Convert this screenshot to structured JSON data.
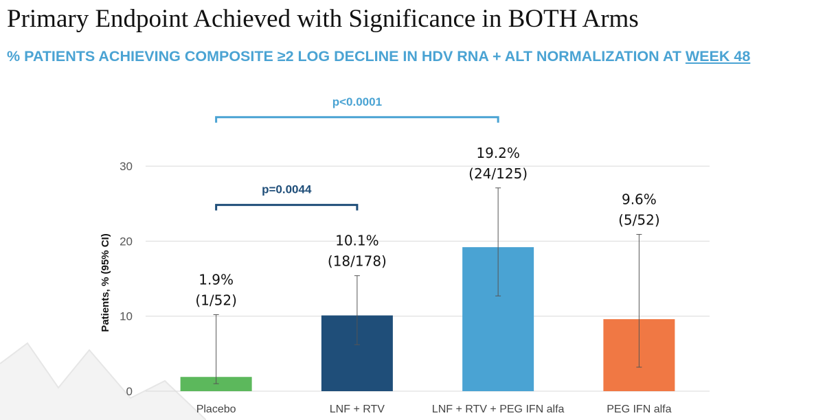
{
  "header": {
    "title": "Primary Endpoint Achieved with Significance in BOTH Arms",
    "subtitle_main": "% PATIENTS ACHIEVING COMPOSITE ≥2 LOG DECLINE IN HDV RNA + ALT NORMALIZATION AT ",
    "subtitle_emphasis": "WEEK 48"
  },
  "chart_data": {
    "type": "bar",
    "ylabel": "Patients, % (95% CI)",
    "ylim": [
      0,
      30
    ],
    "yticks": [
      "0",
      "10",
      "20",
      "30"
    ],
    "grid": true,
    "categories": [
      "Placebo",
      "LNF + RTV",
      "LNF + RTV + PEG IFN alfa",
      "PEG IFN alfa"
    ],
    "values": [
      1.9,
      10.1,
      19.2,
      9.6
    ],
    "ci_low": [
      1.0,
      6.2,
      12.7,
      3.2
    ],
    "ci_high": [
      10.2,
      15.4,
      27.1,
      20.9
    ],
    "value_labels": [
      "1.9%",
      "10.1%",
      "19.2%",
      "9.6%"
    ],
    "count_labels": [
      "(1/52)",
      "(18/178)",
      "(24/125)",
      "(5/52)"
    ],
    "colors": [
      "#5cb85c",
      "#1f4e79",
      "#4aa3d3",
      "#f07844"
    ],
    "comparisons": [
      {
        "label": "p=0.0044",
        "from": 0,
        "to": 1,
        "color": "#1f4e79"
      },
      {
        "label": "p<0.0001",
        "from": 0,
        "to": 2,
        "color": "#4aa3d3"
      }
    ]
  }
}
